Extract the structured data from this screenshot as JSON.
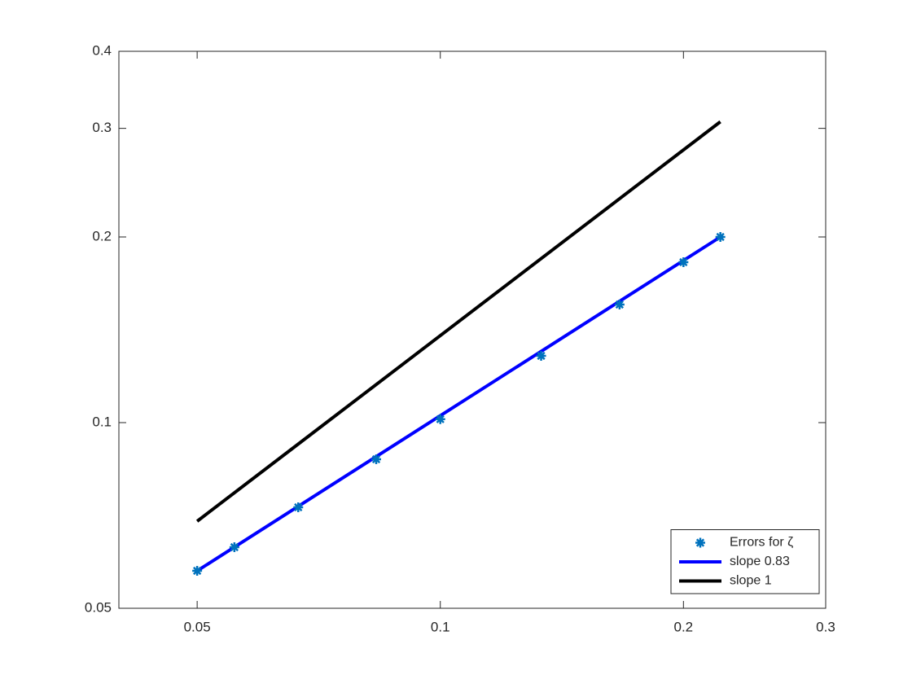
{
  "chart_data": {
    "type": "line",
    "xscale": "log",
    "yscale": "log",
    "xlim": [
      0.04,
      0.3
    ],
    "ylim": [
      0.05,
      0.4
    ],
    "xticks": [
      0.05,
      0.1,
      0.2,
      0.3
    ],
    "yticks": [
      0.05,
      0.1,
      0.2,
      0.3,
      0.4
    ],
    "legend": "southeast",
    "series": [
      {
        "name": "Errors for ζ",
        "color": "#0072bd",
        "style": "markers",
        "x": [
          0.05,
          0.0556,
          0.0667,
          0.0833,
          0.1,
          0.1333,
          0.1667,
          0.2,
          0.2222
        ],
        "values": [
          0.0575,
          0.0628,
          0.0729,
          0.0872,
          0.1013,
          0.1283,
          0.1554,
          0.182,
          0.2
        ]
      },
      {
        "name": "slope 0.83",
        "color": "#0000ff",
        "style": "line",
        "x": [
          0.05,
          0.2222
        ],
        "values": [
          0.0575,
          0.2
        ]
      },
      {
        "name": "slope 1",
        "color": "#000000",
        "style": "line",
        "x": [
          0.05,
          0.2222
        ],
        "values": [
          0.0692,
          0.3075
        ]
      }
    ]
  }
}
